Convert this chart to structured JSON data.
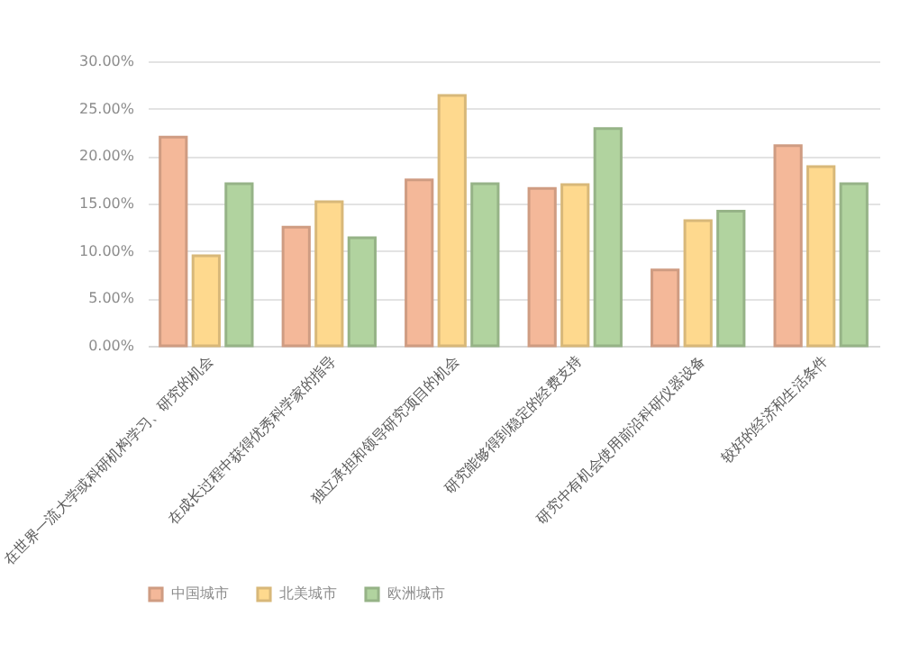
{
  "chart_data": {
    "type": "bar",
    "categories": [
      "在世界一流大学或科研机构学习、研究的机会",
      "在成长过程中获得优秀科学家的指导",
      "独立承担和领导研究项目的机会",
      "研究能够得到稳定的经费支持",
      "研究中有机会使用前沿科研仪器设备",
      "较好的经济和生活条件"
    ],
    "series": [
      {
        "name": "中国城市",
        "color": "#f4b899",
        "values": [
          22.0,
          12.5,
          17.5,
          16.6,
          8.0,
          21.1
        ]
      },
      {
        "name": "北美城市",
        "color": "#fed98e",
        "values": [
          9.5,
          15.2,
          26.4,
          17.0,
          13.2,
          18.9
        ]
      },
      {
        "name": "欧洲城市",
        "color": "#b1d39f",
        "values": [
          17.1,
          11.4,
          17.1,
          22.9,
          14.2,
          17.1
        ]
      }
    ],
    "ylim": [
      0,
      30
    ],
    "yticks": [
      {
        "value": 0,
        "label": "0.00%"
      },
      {
        "value": 5,
        "label": "5.00%"
      },
      {
        "value": 10,
        "label": "10.00%"
      },
      {
        "value": 15,
        "label": "15.00%"
      },
      {
        "value": 20,
        "label": "20.00%"
      },
      {
        "value": 25,
        "label": "25.00%"
      },
      {
        "value": 30,
        "label": "30.00%"
      }
    ],
    "grid": "y",
    "legend": "bottom"
  }
}
